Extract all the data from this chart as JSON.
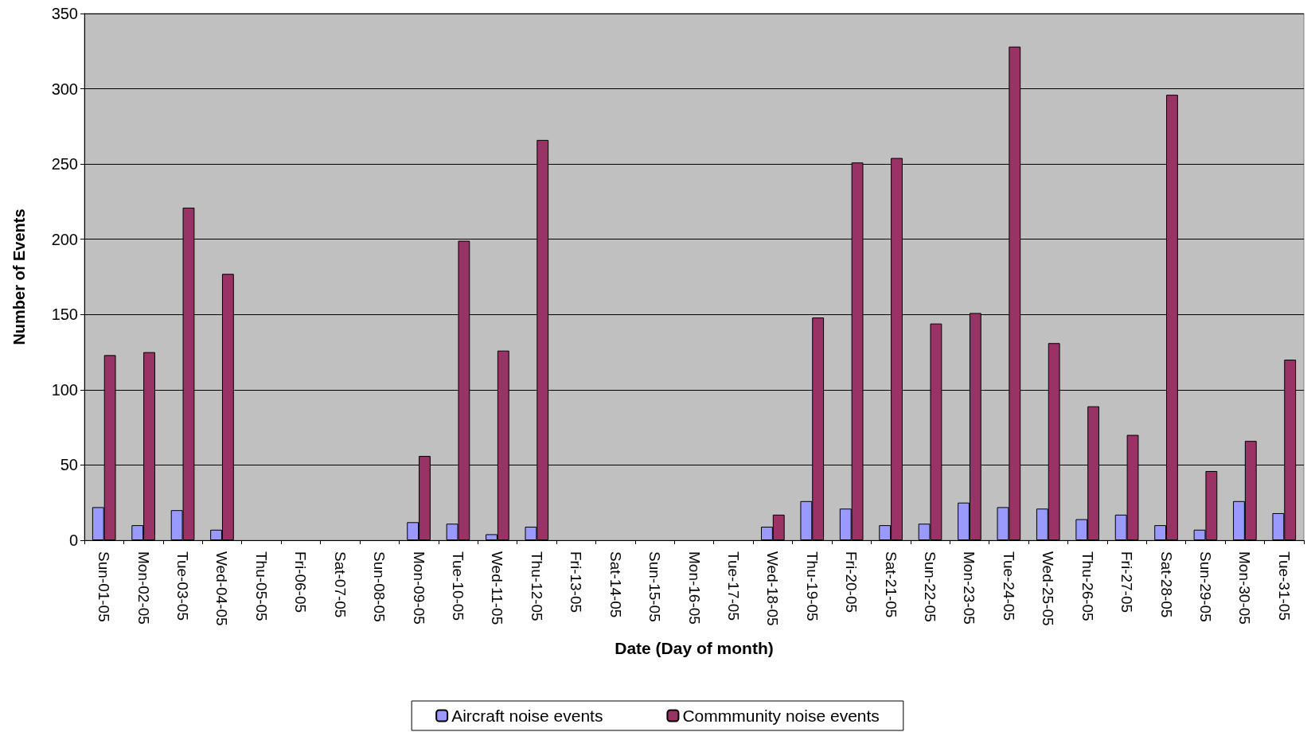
{
  "chart_data": {
    "type": "bar",
    "xlabel": "Date (Day of month)",
    "ylabel": "Number of Events",
    "categories": [
      "Sun-01-05",
      "Mon-02-05",
      "Tue-03-05",
      "Wed-04-05",
      "Thu-05-05",
      "Fri-06-05",
      "Sat-07-05",
      "Sun-08-05",
      "Mon-09-05",
      "Tue-10-05",
      "Wed-11-05",
      "Thu-12-05",
      "Fri-13-05",
      "Sat-14-05",
      "Sun-15-05",
      "Mon-16-05",
      "Tue-17-05",
      "Wed-18-05",
      "Thu-19-05",
      "Fri-20-05",
      "Sat-21-05",
      "Sun-22-05",
      "Mon-23-05",
      "Tue-24-05",
      "Wed-25-05",
      "Thu-26-05",
      "Fri-27-05",
      "Sat-28-05",
      "Sun-29-05",
      "Mon-30-05",
      "Tue-31-05"
    ],
    "series": [
      {
        "name": "Aircraft noise events",
        "color": "#9999ff",
        "values": [
          22,
          10,
          20,
          7,
          null,
          null,
          null,
          null,
          12,
          11,
          4,
          9,
          null,
          null,
          null,
          null,
          null,
          9,
          26,
          21,
          10,
          11,
          25,
          22,
          21,
          14,
          17,
          10,
          7,
          26,
          18
        ]
      },
      {
        "name": "Commmunity noise events",
        "color": "#993366",
        "values": [
          123,
          125,
          221,
          177,
          null,
          null,
          null,
          null,
          56,
          199,
          126,
          266,
          null,
          null,
          null,
          null,
          null,
          17,
          148,
          251,
          254,
          144,
          151,
          328,
          131,
          89,
          70,
          296,
          46,
          66,
          120
        ]
      }
    ],
    "ylim": [
      0,
      350
    ],
    "yticks": [
      0,
      50,
      100,
      150,
      200,
      250,
      300,
      350
    ],
    "grid": "y",
    "legend": "bottom"
  }
}
